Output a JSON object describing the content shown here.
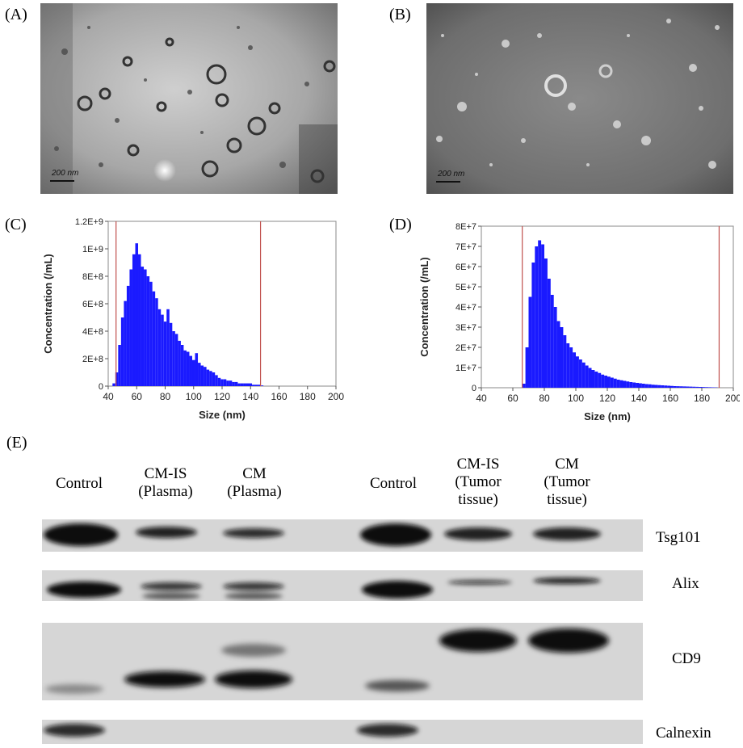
{
  "panels": {
    "A": {
      "label": "(A)",
      "scale_label": "200 nm"
    },
    "B": {
      "label": "(B)",
      "scale_label": "200 nm"
    },
    "C": {
      "label": "(C)"
    },
    "D": {
      "label": "(D)"
    },
    "E": {
      "label": "(E)"
    }
  },
  "western_blot": {
    "lanes": [
      {
        "line1": "Control",
        "line2": "",
        "line3": ""
      },
      {
        "line1": "CM-IS",
        "line2": "(Plasma)",
        "line3": ""
      },
      {
        "line1": "CM",
        "line2": "(Plasma)",
        "line3": ""
      },
      {
        "line1": "Control",
        "line2": "",
        "line3": ""
      },
      {
        "line1": "CM-IS",
        "line2": "(Tumor",
        "line3": "tissue)"
      },
      {
        "line1": "CM",
        "line2": "(Tumor",
        "line3": "tissue)"
      }
    ],
    "markers": [
      "Tsg101",
      "Alix",
      "CD9",
      "Calnexin"
    ]
  },
  "chart_data": [
    {
      "panel": "C",
      "type": "bar",
      "xlabel": "Size (nm)",
      "ylabel": "Concentration (/mL)",
      "xlim": [
        40,
        200
      ],
      "ylim": [
        0,
        1200000000
      ],
      "xticks": [
        "40",
        "60",
        "80",
        "100",
        "120",
        "140",
        "160",
        "180",
        "200"
      ],
      "yticks": [
        "0",
        "2E+8",
        "4E+8",
        "6E+8",
        "8E+8",
        "1E+9",
        "1.2E+9"
      ],
      "markers_x": [
        45.5,
        147
      ],
      "bar_color": "#1a1aff",
      "marker_color": "#c0504d",
      "x": [
        44,
        46,
        48,
        50,
        52,
        54,
        56,
        58,
        60,
        62,
        64,
        66,
        68,
        70,
        72,
        74,
        76,
        78,
        80,
        82,
        84,
        86,
        88,
        90,
        92,
        94,
        96,
        98,
        100,
        102,
        104,
        106,
        108,
        110,
        112,
        114,
        116,
        118,
        120,
        122,
        124,
        126,
        128,
        130,
        132,
        134,
        136,
        138,
        140,
        142,
        144,
        146,
        148
      ],
      "values": [
        20000000,
        100000000,
        300000000,
        500000000,
        620000000,
        730000000,
        850000000,
        960000000,
        1040000000,
        960000000,
        870000000,
        850000000,
        800000000,
        760000000,
        690000000,
        640000000,
        560000000,
        520000000,
        470000000,
        560000000,
        460000000,
        400000000,
        380000000,
        330000000,
        300000000,
        260000000,
        250000000,
        220000000,
        190000000,
        240000000,
        170000000,
        150000000,
        140000000,
        120000000,
        110000000,
        100000000,
        80000000,
        60000000,
        50000000,
        50000000,
        40000000,
        40000000,
        30000000,
        30000000,
        20000000,
        20000000,
        20000000,
        20000000,
        20000000,
        10000000,
        10000000,
        10000000,
        5000000
      ]
    },
    {
      "panel": "D",
      "type": "bar",
      "xlabel": "Size (nm)",
      "ylabel": "Concentration (/mL)",
      "xlim": [
        40,
        200
      ],
      "ylim": [
        0,
        80000000
      ],
      "xticks": [
        "40",
        "60",
        "80",
        "100",
        "120",
        "140",
        "160",
        "180",
        "200"
      ],
      "yticks": [
        "0",
        "1E+7",
        "2E+7",
        "3E+7",
        "4E+7",
        "5E+7",
        "6E+7",
        "7E+7",
        "8E+7"
      ],
      "markers_x": [
        66,
        191
      ],
      "bar_color": "#1a1aff",
      "marker_color": "#c0504d",
      "x": [
        67,
        69,
        71,
        73,
        75,
        77,
        79,
        81,
        83,
        85,
        87,
        89,
        91,
        93,
        95,
        97,
        99,
        101,
        103,
        105,
        107,
        109,
        111,
        113,
        115,
        117,
        119,
        121,
        123,
        125,
        127,
        129,
        131,
        133,
        135,
        137,
        139,
        141,
        143,
        145,
        147,
        149,
        151,
        153,
        155,
        157,
        159,
        161,
        163,
        165,
        167,
        169,
        171,
        173,
        175,
        177,
        179,
        181,
        183,
        185,
        187,
        189
      ],
      "values": [
        2000000,
        20000000,
        45000000,
        62000000,
        70000000,
        73000000,
        71000000,
        64000000,
        54000000,
        46000000,
        40000000,
        33000000,
        30000000,
        26000000,
        22000000,
        20000000,
        17500000,
        15500000,
        14000000,
        12500000,
        11000000,
        9800000,
        8800000,
        8000000,
        7300000,
        6500000,
        6000000,
        5500000,
        5000000,
        4500000,
        4000000,
        3700000,
        3400000,
        3100000,
        2800000,
        2600000,
        2400000,
        2200000,
        2000000,
        1800000,
        1700000,
        1500000,
        1400000,
        1300000,
        1200000,
        1100000,
        1000000,
        900000,
        800000,
        750000,
        700000,
        650000,
        600000,
        550000,
        500000,
        450000,
        400000,
        350000,
        300000,
        250000,
        200000,
        150000
      ]
    }
  ]
}
